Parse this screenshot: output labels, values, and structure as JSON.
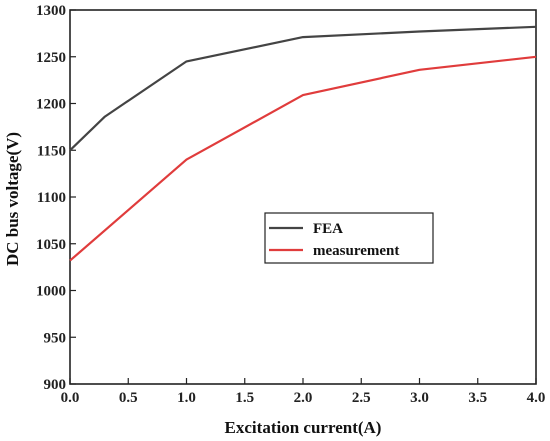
{
  "chart_data": {
    "type": "line",
    "xlabel": "Excitation current(A)",
    "ylabel": "DC bus voltage(V)",
    "xlim": [
      0.0,
      4.0
    ],
    "ylim": [
      900,
      1300
    ],
    "xticks": [
      "0.0",
      "0.5",
      "1.0",
      "1.5",
      "2.0",
      "2.5",
      "3.0",
      "3.5",
      "4.0"
    ],
    "yticks": [
      "900",
      "950",
      "1000",
      "1050",
      "1100",
      "1150",
      "1200",
      "1250",
      "1300"
    ],
    "grid": false,
    "legend_position": "center-right",
    "series": [
      {
        "name": "FEA",
        "color": "#444444",
        "x": [
          0.0,
          0.3,
          1.0,
          2.0,
          3.0,
          4.0
        ],
        "y": [
          1150,
          1186,
          1245,
          1271,
          1277,
          1282
        ]
      },
      {
        "name": "measurement",
        "color": "#e03c3c",
        "x": [
          0.0,
          1.0,
          2.0,
          3.0,
          4.0
        ],
        "y": [
          1032,
          1140,
          1209,
          1236,
          1250
        ]
      }
    ]
  }
}
